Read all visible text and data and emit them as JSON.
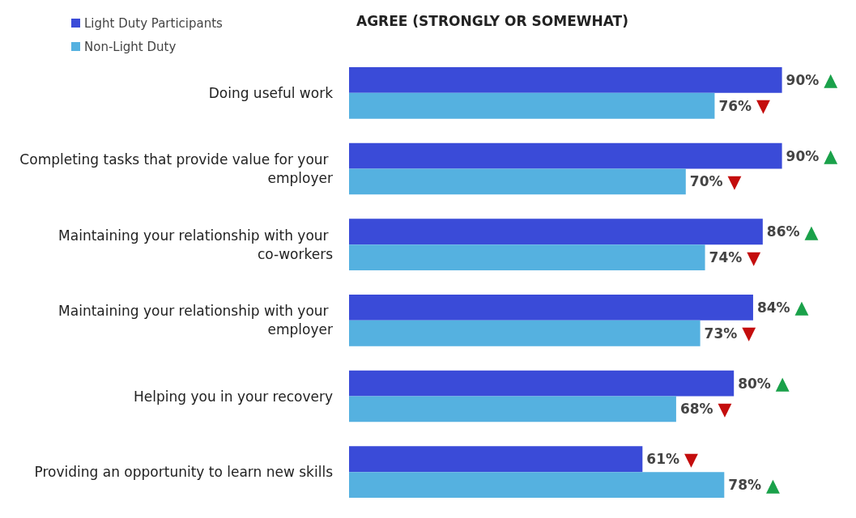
{
  "chart_data": {
    "type": "bar",
    "orientation": "horizontal",
    "title": "AGREE (STRONGLY OR SOMEWHAT)",
    "categories": [
      "Doing useful work",
      "Completing tasks that provide value for your employer",
      "Maintaining your relationship with your co-workers",
      "Maintaining your relationship with your employer",
      "Helping you in your recovery",
      "Providing an opportunity to learn new skills"
    ],
    "series": [
      {
        "name": "Light Duty Participants",
        "color": "#3a4bd8",
        "values": [
          90,
          90,
          86,
          84,
          80,
          61
        ],
        "value_labels": [
          "90% ▲",
          "90% ▲",
          "86% ▲",
          "84% ▲",
          "80% ▲",
          "61% ▼"
        ]
      },
      {
        "name": "Non-Light Duty",
        "color": "#55b1e0",
        "values": [
          76,
          70,
          74,
          73,
          68,
          78
        ],
        "value_labels": [
          "76% ▼",
          "70% ▼",
          "74% ▼",
          "73% ▼",
          "68% ▼",
          "78% ▲"
        ]
      }
    ],
    "tick_labels": "y",
    "grid": false,
    "legend": "top left"
  }
}
